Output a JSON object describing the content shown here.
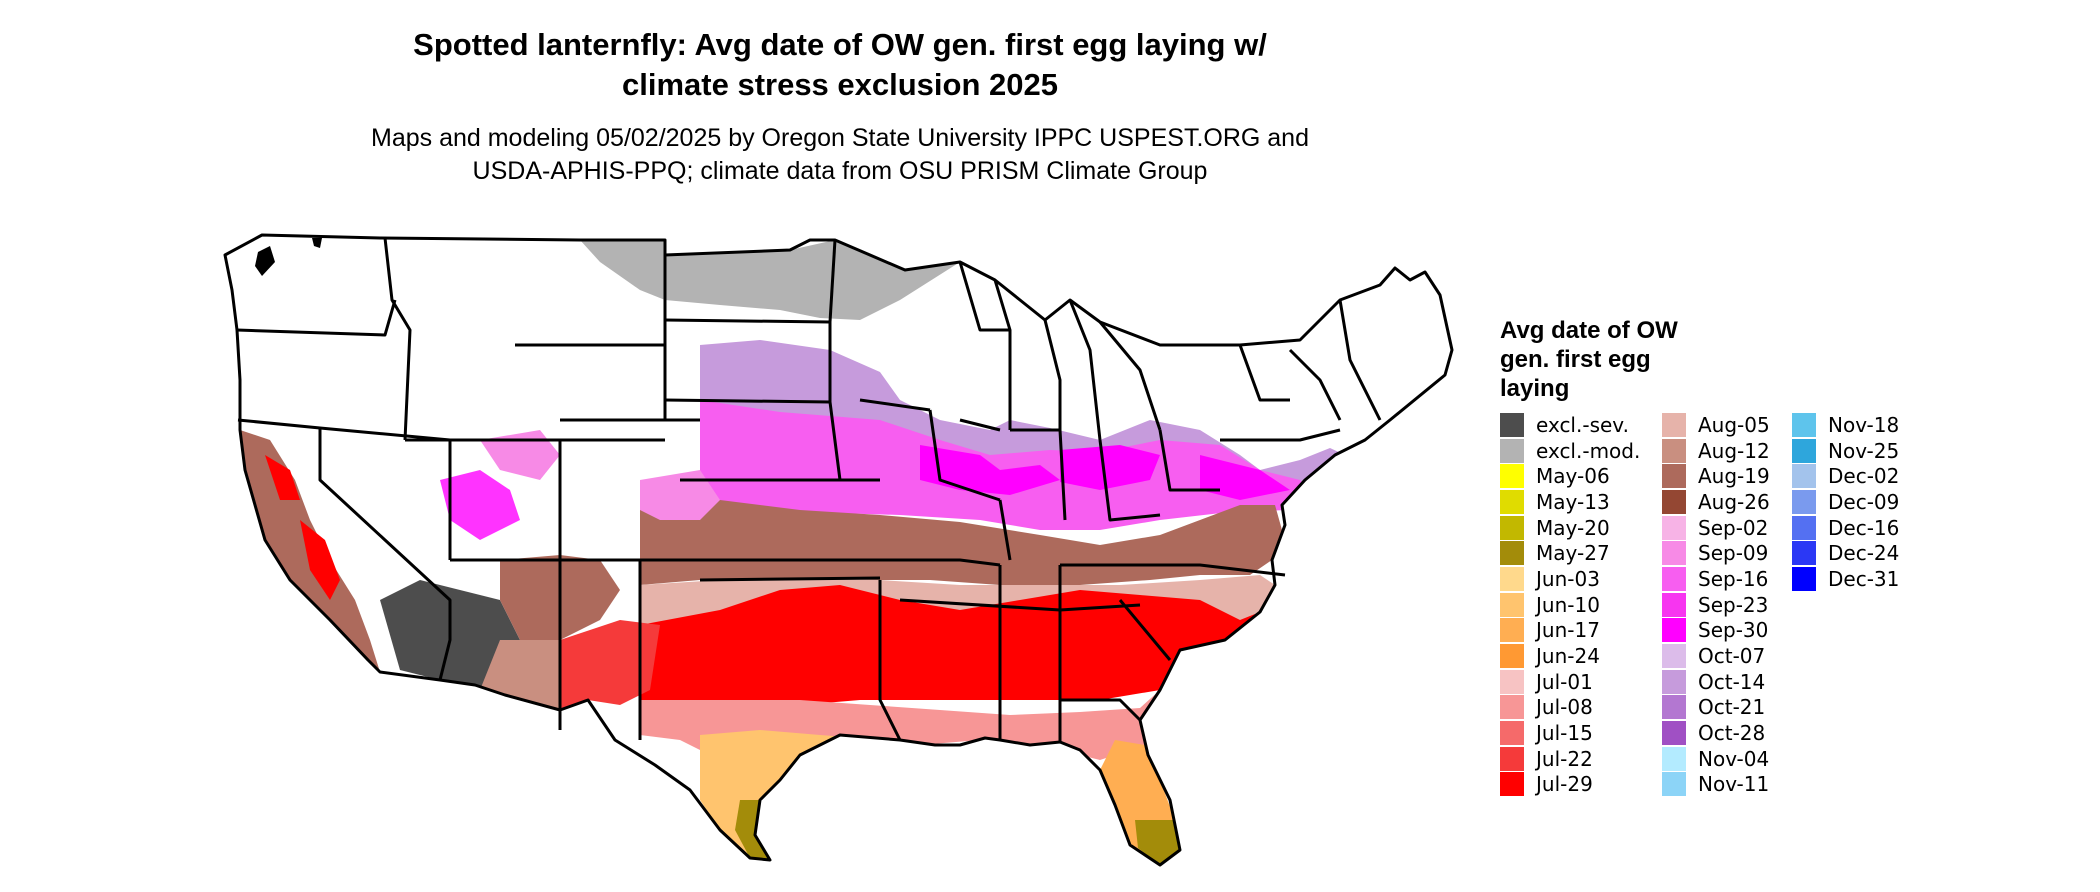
{
  "title_line1": "Spotted lanternfly: Avg date of OW gen. first egg laying w/",
  "title_line2": "climate stress exclusion 2025",
  "subtitle_line1": "Maps and modeling 05/02/2025 by Oregon State University IPPC USPEST.ORG and",
  "subtitle_line2": "USDA-APHIS-PPQ; climate data from OSU PRISM Climate Group",
  "legend": {
    "title_line1": "Avg date of OW",
    "title_line2": "gen. first egg",
    "title_line3": "laying",
    "columns": [
      [
        {
          "label": "excl.-sev.",
          "color": "#4d4d4d"
        },
        {
          "label": "excl.-mod.",
          "color": "#b3b3b3"
        },
        {
          "label": "May-06",
          "color": "#ffff00"
        },
        {
          "label": "May-13",
          "color": "#e0dc00"
        },
        {
          "label": "May-20",
          "color": "#c2b800"
        },
        {
          "label": "May-27",
          "color": "#a38c0a"
        },
        {
          "label": "Jun-03",
          "color": "#ffd98c"
        },
        {
          "label": "Jun-10",
          "color": "#ffc46e"
        },
        {
          "label": "Jun-17",
          "color": "#ffae52"
        },
        {
          "label": "Jun-24",
          "color": "#ff9933"
        },
        {
          "label": "Jul-01",
          "color": "#f7c3c3"
        },
        {
          "label": "Jul-08",
          "color": "#f79696"
        },
        {
          "label": "Jul-15",
          "color": "#f56a6a"
        },
        {
          "label": "Jul-22",
          "color": "#f53a3a"
        },
        {
          "label": "Jul-29",
          "color": "#ff0000"
        }
      ],
      [
        {
          "label": "Aug-05",
          "color": "#e6b3aa"
        },
        {
          "label": "Aug-12",
          "color": "#c98f80"
        },
        {
          "label": "Aug-19",
          "color": "#ad6a5c"
        },
        {
          "label": "Aug-26",
          "color": "#944733"
        },
        {
          "label": "Sep-02",
          "color": "#f7b3e6"
        },
        {
          "label": "Sep-09",
          "color": "#f78ae6"
        },
        {
          "label": "Sep-16",
          "color": "#f75ef0"
        },
        {
          "label": "Sep-23",
          "color": "#f735f0"
        },
        {
          "label": "Sep-30",
          "color": "#ff00ff"
        },
        {
          "label": "Oct-07",
          "color": "#dcbcea"
        },
        {
          "label": "Oct-14",
          "color": "#c69bdc"
        },
        {
          "label": "Oct-21",
          "color": "#b377d1"
        },
        {
          "label": "Oct-28",
          "color": "#a050c4"
        },
        {
          "label": "Nov-04",
          "color": "#b3ebff"
        },
        {
          "label": "Nov-11",
          "color": "#8cd4f7"
        }
      ],
      [
        {
          "label": "Nov-18",
          "color": "#5ec4ec"
        },
        {
          "label": "Nov-25",
          "color": "#2ea6dc"
        },
        {
          "label": "Dec-02",
          "color": "#a3c3ec"
        },
        {
          "label": "Dec-09",
          "color": "#7a9aee"
        },
        {
          "label": "Dec-16",
          "color": "#5470f2"
        },
        {
          "label": "Dec-24",
          "color": "#2b38f5"
        },
        {
          "label": "Dec-31",
          "color": "#0000ff"
        }
      ]
    ]
  }
}
